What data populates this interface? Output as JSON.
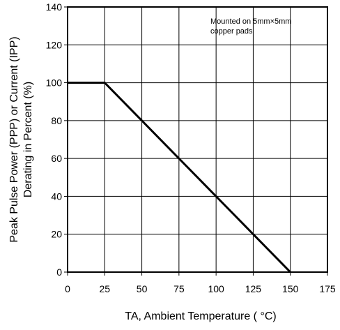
{
  "chart_data": {
    "type": "line",
    "series": [
      {
        "x": [
          0,
          25,
          150
        ],
        "y": [
          100,
          100,
          0
        ],
        "color": "#000000"
      }
    ],
    "xlim": [
      0,
      175
    ],
    "ylim": [
      0,
      140
    ],
    "xticks": [
      0,
      25,
      50,
      75,
      100,
      125,
      150,
      175
    ],
    "yticks": [
      0,
      20,
      40,
      60,
      80,
      100,
      120,
      140
    ],
    "grid": true,
    "xlabel": "TA, Ambient Temperature (   °C)",
    "ylabel_line1": "Peak Pulse Power (PPP) or Current (IPP)",
    "ylabel_line2": "Derating in Percent (%)",
    "annotation_line1": "Mounted on 5mm×5mm",
    "annotation_line2": "copper pads",
    "annotation_position": "top-right"
  }
}
